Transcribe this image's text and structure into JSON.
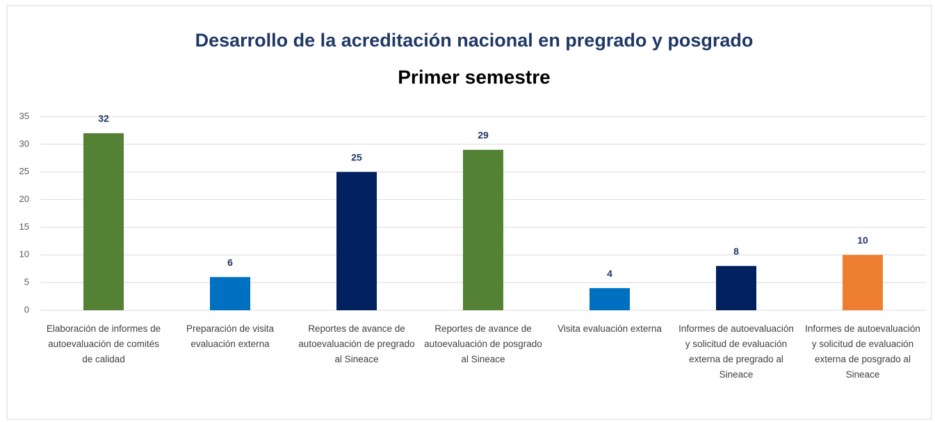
{
  "chart_data": {
    "type": "bar",
    "title": "Desarrollo de la acreditación nacional en pregrado y posgrado",
    "subtitle": "Primer semestre",
    "categories": [
      "Elaboración de informes de autoevaluación de comités de calidad",
      "Preparación de visita evaluación externa",
      "Reportes de avance de autoevaluación de pregrado al Sineace",
      "Reportes de avance de autoevaluación de posgrado al Sineace",
      "Visita evaluación externa",
      "Informes de autoevaluación y solicitud de evaluación externa de pregrado al Sineace",
      "Informes de autoevaluación y solicitud de evaluación externa de posgrado al Sineace"
    ],
    "values": [
      32,
      6,
      25,
      29,
      4,
      8,
      10
    ],
    "colors": [
      "#548235",
      "#0070c0",
      "#002060",
      "#548235",
      "#0070c0",
      "#002060",
      "#ed7d31"
    ],
    "ylim": [
      0,
      35
    ],
    "yticks": [
      0,
      5,
      10,
      15,
      20,
      25,
      30,
      35
    ],
    "grid": true
  }
}
